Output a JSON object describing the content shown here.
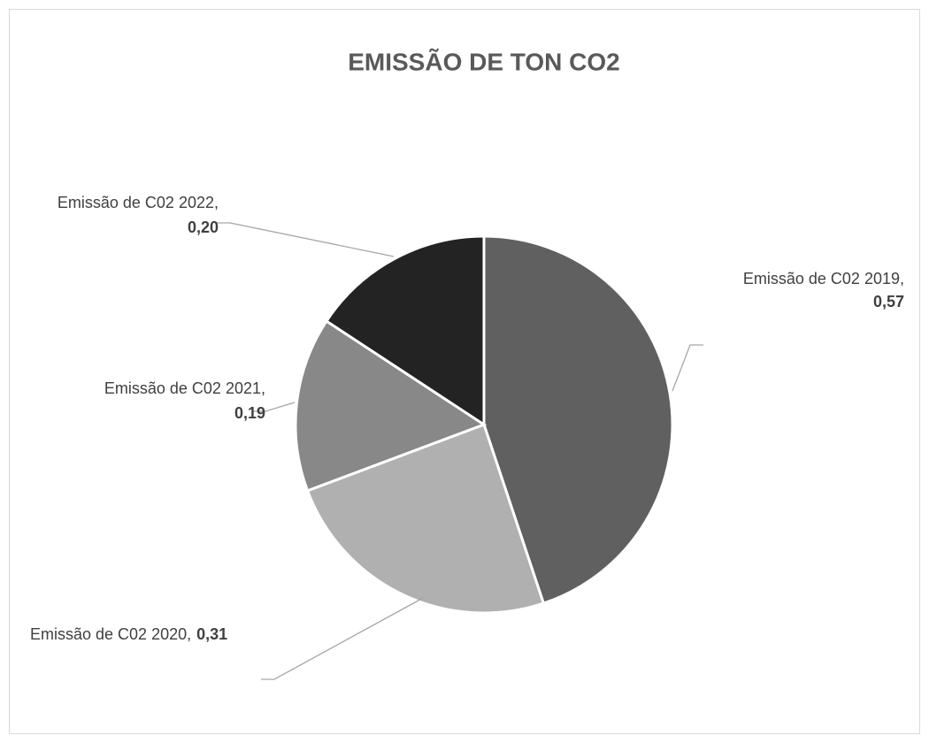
{
  "chart_data": {
    "type": "pie",
    "title": "EMISSÃO DE TON CO2",
    "categories": [
      "Emissão de C02 2019",
      "Emissão de C02 2020",
      "Emissão de C02 2021",
      "Emissão de C02 2022"
    ],
    "values": [
      0.57,
      0.31,
      0.19,
      0.2
    ],
    "value_labels": [
      "0,57",
      "0,31",
      "0,19",
      "0,20"
    ],
    "label_separator": ",",
    "colors": [
      "#606060",
      "#b0b0b0",
      "#888888",
      "#232323"
    ]
  }
}
